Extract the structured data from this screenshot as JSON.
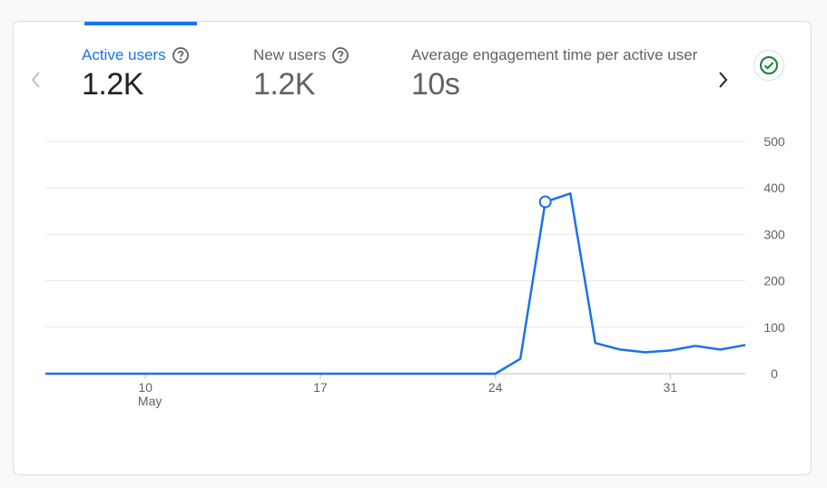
{
  "metrics": [
    {
      "label": "Active users",
      "value": "1.2K",
      "active": true
    },
    {
      "label": "New users",
      "value": "1.2K",
      "active": false
    },
    {
      "label": "Average engagement time per active user",
      "value": "10s",
      "active": false
    }
  ],
  "icons": {
    "help": "help-circle-icon",
    "prev": "chevron-left-icon",
    "next": "chevron-right-icon",
    "status": "check-circle-icon"
  },
  "colors": {
    "accent": "#1a73e8",
    "line": "#1a73e8",
    "status": "#188038"
  },
  "chart_data": {
    "type": "line",
    "x": [
      "May 6",
      "May 7",
      "May 8",
      "May 9",
      "May 10",
      "May 11",
      "May 12",
      "May 13",
      "May 14",
      "May 15",
      "May 16",
      "May 17",
      "May 18",
      "May 19",
      "May 20",
      "May 21",
      "May 22",
      "May 23",
      "May 24",
      "May 25",
      "May 26",
      "May 27",
      "May 28",
      "May 29",
      "May 30",
      "May 31",
      "Jun 1",
      "Jun 2",
      "Jun 3"
    ],
    "series": [
      {
        "values": [
          0,
          0,
          0,
          0,
          0,
          0,
          0,
          0,
          0,
          0,
          0,
          0,
          0,
          0,
          0,
          0,
          0,
          0,
          0,
          32,
          370,
          388,
          66,
          52,
          46,
          50,
          60,
          52,
          62
        ]
      }
    ],
    "x_tick_labels": [
      {
        "label": "10",
        "sublabel": "May",
        "x": "May 10"
      },
      {
        "label": "17",
        "sublabel": "",
        "x": "May 17"
      },
      {
        "label": "24",
        "sublabel": "",
        "x": "May 24"
      },
      {
        "label": "31",
        "sublabel": "",
        "x": "May 31"
      }
    ],
    "y_ticks": [
      0,
      100,
      200,
      300,
      400,
      500
    ],
    "ylim": [
      0,
      500
    ],
    "highlighted_point": "May 26",
    "grid": true,
    "y_axis_side": "right"
  }
}
